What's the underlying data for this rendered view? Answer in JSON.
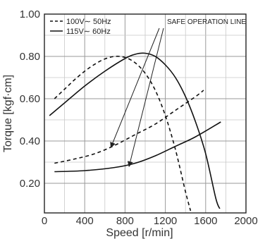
{
  "chart_data": {
    "type": "line",
    "xlabel": "Speed [r/min]",
    "ylabel": "Torque [kgf·cm]",
    "xlim": [
      0,
      2000
    ],
    "ylim": [
      0.06,
      1.0
    ],
    "x_ticks": [
      "0",
      "400",
      "800",
      "1200",
      "1600",
      "2000"
    ],
    "y_ticks": [
      "0.20",
      "0.40",
      "0.60",
      "0.80",
      "1.00"
    ],
    "grid": true,
    "legend_position": "top-left",
    "series": [
      {
        "name": "100V∼ 50Hz",
        "role": "torque",
        "style": "dashed",
        "x": [
          100,
          200,
          300,
          400,
          500,
          600,
          700,
          800,
          900,
          1000,
          1100,
          1200,
          1300,
          1400,
          1450
        ],
        "y": [
          0.6,
          0.645,
          0.69,
          0.73,
          0.763,
          0.788,
          0.8,
          0.795,
          0.77,
          0.72,
          0.64,
          0.52,
          0.36,
          0.16,
          0.07
        ]
      },
      {
        "name": "115V∼ 60Hz",
        "role": "torque",
        "style": "solid",
        "x": [
          50,
          200,
          400,
          600,
          800,
          900,
          1000,
          1100,
          1200,
          1300,
          1400,
          1500,
          1600,
          1700,
          1740
        ],
        "y": [
          0.52,
          0.58,
          0.66,
          0.73,
          0.79,
          0.81,
          0.815,
          0.8,
          0.76,
          0.7,
          0.61,
          0.49,
          0.34,
          0.13,
          0.08
        ]
      },
      {
        "name": "100V∼ 50Hz",
        "role": "safe-operation-line",
        "style": "dashed",
        "x": [
          100,
          300,
          500,
          700,
          900,
          1100,
          1300,
          1500,
          1580
        ],
        "y": [
          0.295,
          0.315,
          0.34,
          0.38,
          0.43,
          0.48,
          0.545,
          0.61,
          0.64
        ]
      },
      {
        "name": "115V∼ 60Hz",
        "role": "safe-operation-line",
        "style": "solid",
        "x": [
          100,
          400,
          700,
          900,
          1100,
          1300,
          1500,
          1750
        ],
        "y": [
          0.255,
          0.26,
          0.275,
          0.295,
          0.33,
          0.375,
          0.42,
          0.49
        ]
      }
    ],
    "annotation": {
      "text": "SAFE OPERATION LINE",
      "targets": [
        {
          "x": 660,
          "y": 0.37
        },
        {
          "x": 840,
          "y": 0.28
        }
      ]
    }
  }
}
